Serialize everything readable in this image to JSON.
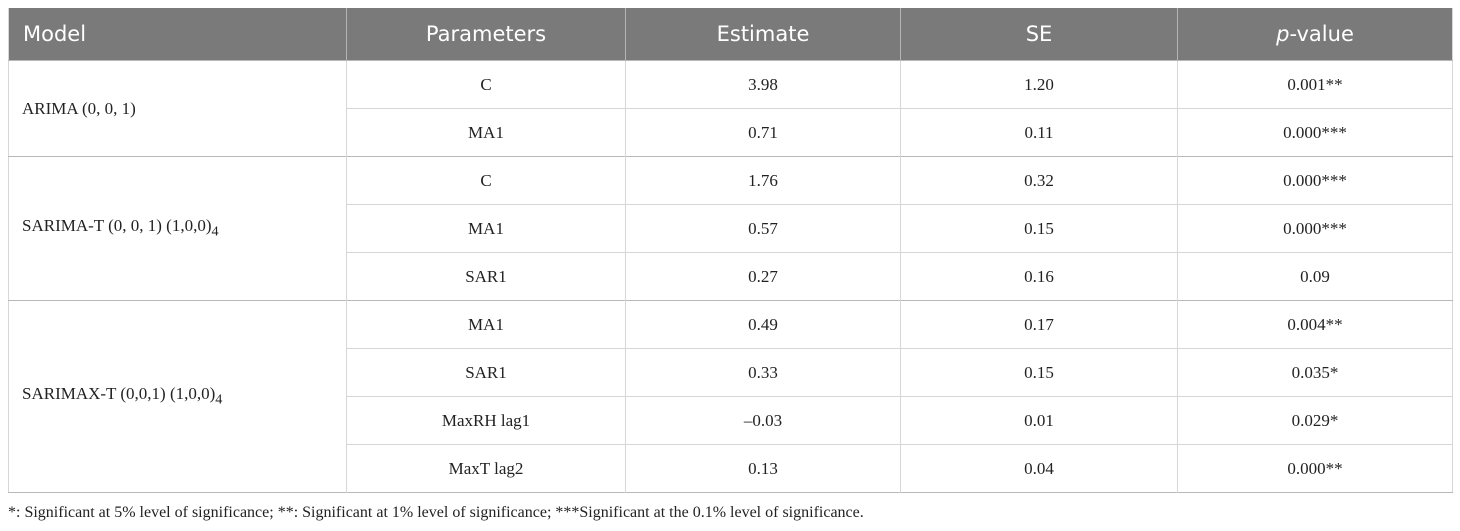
{
  "table": {
    "header": [
      "Model",
      "Parameters",
      "Estimate",
      "SE",
      {
        "italic": "p",
        "text": "-value"
      }
    ],
    "groups": [
      {
        "model": {
          "text": "ARIMA (0, 0, 1)"
        },
        "rows": [
          [
            "C",
            "3.98",
            "1.20",
            "0.001**"
          ],
          [
            "MA1",
            "0.71",
            "0.11",
            "0.000***"
          ]
        ]
      },
      {
        "model": {
          "text": "SARIMA-T (0, 0, 1) (1,0,0)",
          "sub": "4"
        },
        "rows": [
          [
            "C",
            "1.76",
            "0.32",
            "0.000***"
          ],
          [
            "MA1",
            "0.57",
            "0.15",
            "0.000***"
          ],
          [
            "SAR1",
            "0.27",
            "0.16",
            "0.09"
          ]
        ]
      },
      {
        "model": {
          "text": "SARIMAX-T (0,0,1) (1,0,0)",
          "sub": "4"
        },
        "rows": [
          [
            "MA1",
            "0.49",
            "0.17",
            "0.004**"
          ],
          [
            "SAR1",
            "0.33",
            "0.15",
            "0.035*"
          ],
          [
            "MaxRH lag1",
            "–0.03",
            "0.01",
            "0.029*"
          ],
          [
            "MaxT lag2",
            "0.13",
            "0.04",
            "0.000**"
          ]
        ]
      }
    ]
  },
  "footnote": "*: Significant at 5% level of significance; **: Significant at 1% level of significance; ***Significant at the 0.1% level of significance."
}
